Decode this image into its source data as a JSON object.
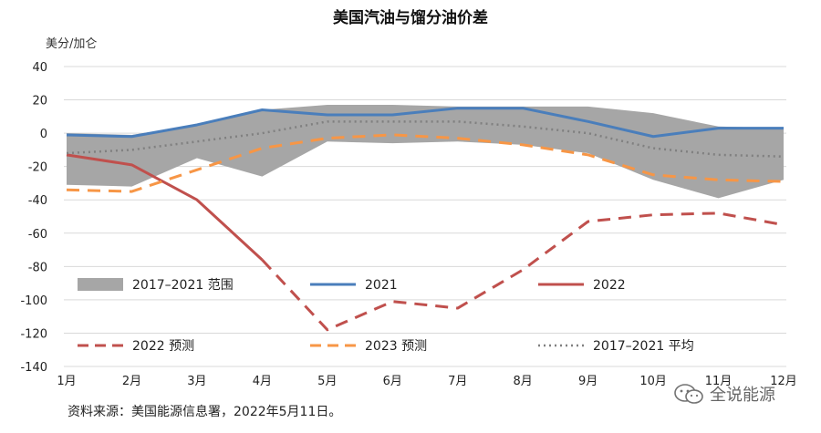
{
  "chart_data": {
    "type": "line",
    "title": "美国汽油与馏分油价差",
    "ylabel": "美分/加仑",
    "ylim": [
      -140,
      40
    ],
    "y_ticks": [
      40,
      20,
      0,
      -20,
      -40,
      -60,
      -80,
      -100,
      -120,
      -140
    ],
    "categories": [
      "1月",
      "2月",
      "3月",
      "4月",
      "5月",
      "6月",
      "7月",
      "8月",
      "9月",
      "10月",
      "11月",
      "12月"
    ],
    "grid": true,
    "band": {
      "name": "2017–2021 范围",
      "color": "#a6a6a6",
      "upper": [
        0,
        -1,
        5,
        14,
        17,
        17,
        16,
        16,
        16,
        12,
        4,
        3
      ],
      "lower": [
        -31,
        -32,
        -15,
        -26,
        -5,
        -6,
        -5,
        -7,
        -12,
        -28,
        -39,
        -28
      ]
    },
    "series": [
      {
        "name": "2021",
        "color": "#4a7ebb",
        "style": "solid",
        "values": [
          -1,
          -2,
          5,
          14,
          11,
          11,
          15,
          15,
          7,
          -2,
          3,
          3
        ]
      },
      {
        "name": "2022",
        "color": "#c0504d",
        "style": "solid",
        "values": [
          -13,
          -19,
          -40,
          -76,
          null,
          null,
          null,
          null,
          null,
          null,
          null,
          null
        ]
      },
      {
        "name": "2022 预测",
        "color": "#c0504d",
        "style": "dashed",
        "values": [
          null,
          null,
          null,
          -76,
          -118,
          -101,
          -105,
          -82,
          -53,
          -49,
          -48,
          -55
        ]
      },
      {
        "name": "2023 预测",
        "color": "#f79646",
        "style": "dashed",
        "values": [
          -34,
          -35,
          -22,
          -9,
          -3,
          -1,
          -3,
          -7,
          -13,
          -25,
          -28,
          -29
        ]
      },
      {
        "name": "2017–2021 平均",
        "color": "#808080",
        "style": "dotted",
        "values": [
          -12,
          -10,
          -5,
          0,
          7,
          7,
          7,
          4,
          0,
          -9,
          -13,
          -14
        ]
      }
    ],
    "legend": [
      {
        "key": "band",
        "label": "2017–2021 范围"
      },
      {
        "key": "s0",
        "label": "2021"
      },
      {
        "key": "s1",
        "label": "2022"
      },
      {
        "key": "s2",
        "label": "2022 预测"
      },
      {
        "key": "s3",
        "label": "2023 预测"
      },
      {
        "key": "s4",
        "label": "2017–2021 平均"
      }
    ]
  },
  "source_note": "资料来源：美国能源信息署，2022年5月11日。",
  "watermark": {
    "text": "全说能源",
    "icon": "wechat-icon"
  }
}
